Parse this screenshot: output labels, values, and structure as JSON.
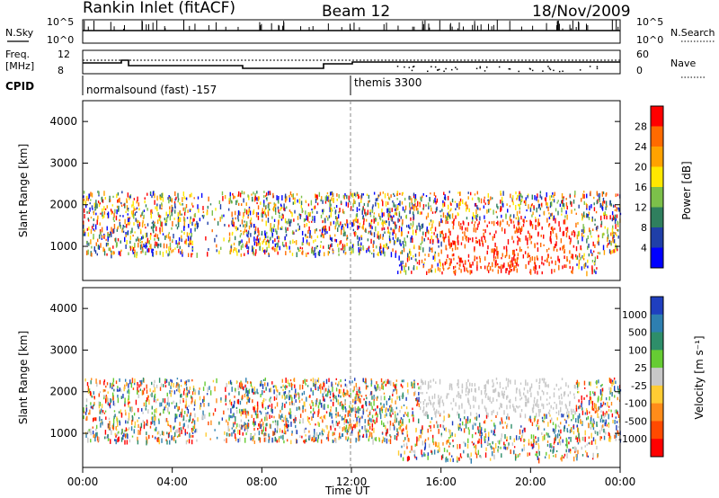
{
  "header": {
    "title_left": "Rankin Inlet (fitACF)",
    "title_mid": "Beam 12",
    "title_right": "18/Nov/2009"
  },
  "chart_data": [
    {
      "type": "line",
      "name": "status-nsky-nsearch",
      "left_label": "N.Sky",
      "right_label": "N.Search",
      "left_ticks": [
        "10^5",
        "10^0"
      ],
      "right_ticks": [
        "10^5",
        "10^0"
      ]
    },
    {
      "type": "line",
      "name": "status-freq-nave",
      "left_label_1": "Freq.",
      "left_label_2": "[MHz]",
      "right_label": "Nave",
      "left_ticks": [
        "12",
        "8"
      ],
      "right_ticks": [
        "60",
        "0"
      ]
    },
    {
      "type": "table",
      "name": "cpid",
      "label": "CPID",
      "segments": [
        {
          "start_hour": 0,
          "text": "normalsound (fast) -157"
        },
        {
          "start_hour": 12,
          "text": "themis 3300"
        }
      ]
    },
    {
      "type": "heatmap",
      "name": "power-panel",
      "ylabel": "Slant Range [km]",
      "yticks": [
        1000,
        2000,
        3000,
        4000
      ],
      "ylim": [
        180,
        4500
      ],
      "xlim_hours": [
        0,
        24
      ],
      "colorbar": {
        "label": "Power [dB]",
        "ticks": [
          "28",
          "24",
          "20",
          "16",
          "12",
          "8",
          "4"
        ],
        "colors": [
          "#ff0000",
          "#ff6a00",
          "#ffa200",
          "#ffe800",
          "#7cc04a",
          "#2f7f5e",
          "#1f3fa8",
          "#0000ff"
        ]
      }
    },
    {
      "type": "heatmap",
      "name": "velocity-panel",
      "ylabel": "Slant Range [km]",
      "yticks": [
        1000,
        2000,
        3000,
        4000
      ],
      "ylim": [
        180,
        4500
      ],
      "xlim_hours": [
        0,
        24
      ],
      "colorbar": {
        "label": "Velocity [m s⁻¹]",
        "ticks": [
          "1000",
          "500",
          "100",
          "25",
          "-25",
          "-100",
          "-500",
          "-1000"
        ],
        "colors": [
          "#1f3fbf",
          "#2e7fb0",
          "#2e8e6a",
          "#66cc33",
          "#c8c8c8",
          "#ffcc33",
          "#ff8c1a",
          "#ff4a00",
          "#ff0000"
        ]
      }
    }
  ],
  "xaxis": {
    "label": "Time UT",
    "ticks": [
      "00:00",
      "04:00",
      "08:00",
      "12:00",
      "16:00",
      "20:00",
      "00:00"
    ]
  }
}
